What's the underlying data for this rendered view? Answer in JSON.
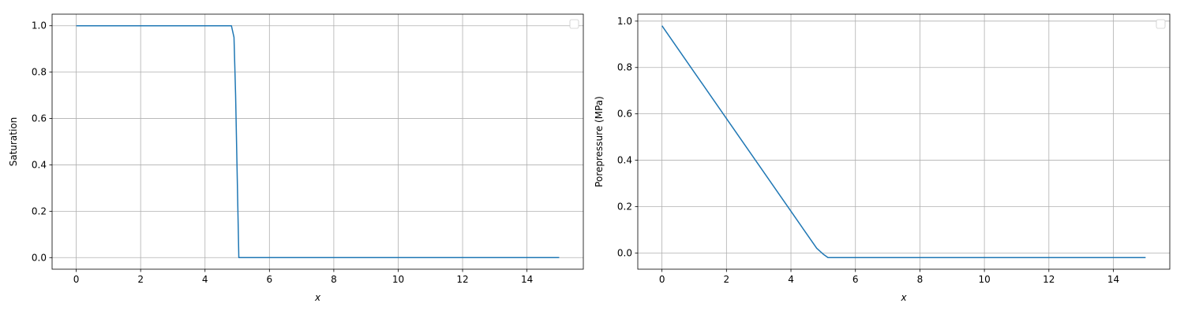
{
  "chart_data": [
    {
      "type": "line",
      "title": "",
      "xlabel": "x",
      "ylabel": "Saturation",
      "xlim": [
        -0.75,
        15.75
      ],
      "ylim": [
        -0.05,
        1.05
      ],
      "xticks": [
        0,
        2,
        4,
        6,
        8,
        10,
        12,
        14
      ],
      "yticks": [
        0.0,
        0.2,
        0.4,
        0.6,
        0.8,
        1.0
      ],
      "xtick_labels": [
        "0",
        "2",
        "4",
        "6",
        "8",
        "10",
        "12",
        "14"
      ],
      "ytick_labels": [
        "0.0",
        "0.2",
        "0.4",
        "0.6",
        "0.8",
        "1.0"
      ],
      "grid": true,
      "legend": "top-right",
      "series": [
        {
          "color": "#1f77b4",
          "x": [
            0,
            4.82,
            4.9,
            4.95,
            5.05,
            15
          ],
          "y": [
            1.0,
            1.0,
            0.95,
            0.7,
            0.0,
            0.0
          ]
        }
      ]
    },
    {
      "type": "line",
      "title": "",
      "xlabel": "x",
      "ylabel": "Porepressure (MPa)",
      "xlim": [
        -0.75,
        15.75
      ],
      "ylim": [
        -0.07,
        1.03
      ],
      "xticks": [
        0,
        2,
        4,
        6,
        8,
        10,
        12,
        14
      ],
      "yticks": [
        0.0,
        0.2,
        0.4,
        0.6,
        0.8,
        1.0
      ],
      "xtick_labels": [
        "0",
        "2",
        "4",
        "6",
        "8",
        "10",
        "12",
        "14"
      ],
      "ytick_labels": [
        "0.0",
        "0.2",
        "0.4",
        "0.6",
        "0.8",
        "1.0"
      ],
      "grid": true,
      "legend": "top-right",
      "series": [
        {
          "color": "#1f77b4",
          "x": [
            0,
            1,
            2,
            3,
            4,
            4.5,
            4.8,
            5.0,
            5.15,
            15
          ],
          "y": [
            0.98,
            0.78,
            0.58,
            0.38,
            0.18,
            0.08,
            0.02,
            -0.005,
            -0.02,
            -0.02
          ]
        }
      ]
    }
  ]
}
